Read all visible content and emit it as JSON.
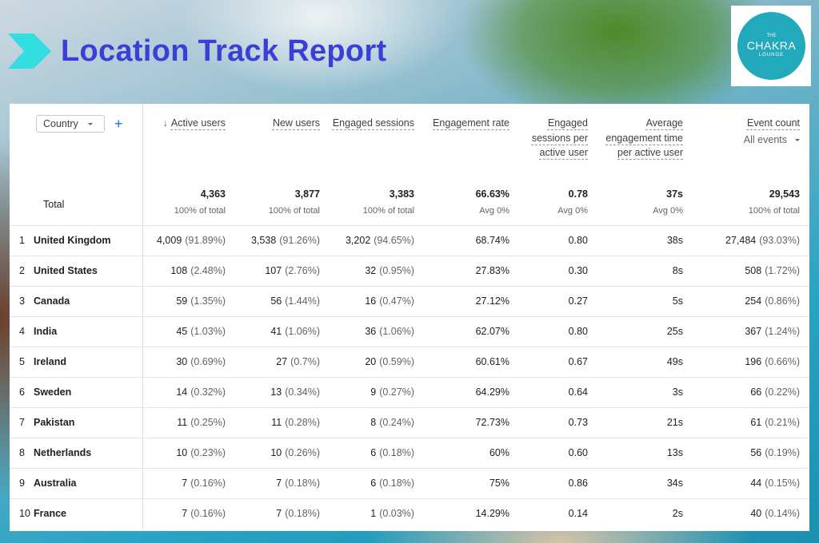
{
  "header": {
    "title": "Location Track Report"
  },
  "logo": {
    "top": "THE",
    "name": "CHAKRA",
    "bottom": "LOUNGE"
  },
  "table": {
    "dimension": "Country",
    "columns": [
      {
        "label": "Active users",
        "sorted": true
      },
      {
        "label": "New users"
      },
      {
        "label": "Engaged sessions"
      },
      {
        "label": "Engagement rate"
      },
      {
        "label": "Engaged sessions per active user"
      },
      {
        "label": "Average engagement time per active user"
      },
      {
        "label": "Event count",
        "sub": "All events"
      }
    ],
    "totals": {
      "label": "Total",
      "values": [
        {
          "value": "4,363",
          "note": "100% of total"
        },
        {
          "value": "3,877",
          "note": "100% of total"
        },
        {
          "value": "3,383",
          "note": "100% of total"
        },
        {
          "value": "66.63%",
          "note": "Avg 0%"
        },
        {
          "value": "0.78",
          "note": "Avg 0%"
        },
        {
          "value": "37s",
          "note": "Avg 0%"
        },
        {
          "value": "29,543",
          "note": "100% of total"
        }
      ]
    },
    "rows": [
      {
        "rank": "1",
        "country": "United Kingdom",
        "cells": [
          [
            "4,009",
            "(91.89%)"
          ],
          [
            "3,538",
            "(91.26%)"
          ],
          [
            "3,202",
            "(94.65%)"
          ],
          [
            "68.74%"
          ],
          [
            "0.80"
          ],
          [
            "38s"
          ],
          [
            "27,484",
            "(93.03%)"
          ]
        ]
      },
      {
        "rank": "2",
        "country": "United States",
        "cells": [
          [
            "108",
            "(2.48%)"
          ],
          [
            "107",
            "(2.76%)"
          ],
          [
            "32",
            "(0.95%)"
          ],
          [
            "27.83%"
          ],
          [
            "0.30"
          ],
          [
            "8s"
          ],
          [
            "508",
            "(1.72%)"
          ]
        ]
      },
      {
        "rank": "3",
        "country": "Canada",
        "cells": [
          [
            "59",
            "(1.35%)"
          ],
          [
            "56",
            "(1.44%)"
          ],
          [
            "16",
            "(0.47%)"
          ],
          [
            "27.12%"
          ],
          [
            "0.27"
          ],
          [
            "5s"
          ],
          [
            "254",
            "(0.86%)"
          ]
        ]
      },
      {
        "rank": "4",
        "country": "India",
        "cells": [
          [
            "45",
            "(1.03%)"
          ],
          [
            "41",
            "(1.06%)"
          ],
          [
            "36",
            "(1.06%)"
          ],
          [
            "62.07%"
          ],
          [
            "0.80"
          ],
          [
            "25s"
          ],
          [
            "367",
            "(1.24%)"
          ]
        ]
      },
      {
        "rank": "5",
        "country": "Ireland",
        "cells": [
          [
            "30",
            "(0.69%)"
          ],
          [
            "27",
            "(0.7%)"
          ],
          [
            "20",
            "(0.59%)"
          ],
          [
            "60.61%"
          ],
          [
            "0.67"
          ],
          [
            "49s"
          ],
          [
            "196",
            "(0.66%)"
          ]
        ]
      },
      {
        "rank": "6",
        "country": "Sweden",
        "cells": [
          [
            "14",
            "(0.32%)"
          ],
          [
            "13",
            "(0.34%)"
          ],
          [
            "9",
            "(0.27%)"
          ],
          [
            "64.29%"
          ],
          [
            "0.64"
          ],
          [
            "3s"
          ],
          [
            "66",
            "(0.22%)"
          ]
        ]
      },
      {
        "rank": "7",
        "country": "Pakistan",
        "cells": [
          [
            "11",
            "(0.25%)"
          ],
          [
            "11",
            "(0.28%)"
          ],
          [
            "8",
            "(0.24%)"
          ],
          [
            "72.73%"
          ],
          [
            "0.73"
          ],
          [
            "21s"
          ],
          [
            "61",
            "(0.21%)"
          ]
        ]
      },
      {
        "rank": "8",
        "country": "Netherlands",
        "cells": [
          [
            "10",
            "(0.23%)"
          ],
          [
            "10",
            "(0.26%)"
          ],
          [
            "6",
            "(0.18%)"
          ],
          [
            "60%"
          ],
          [
            "0.60"
          ],
          [
            "13s"
          ],
          [
            "56",
            "(0.19%)"
          ]
        ]
      },
      {
        "rank": "9",
        "country": "Australia",
        "cells": [
          [
            "7",
            "(0.16%)"
          ],
          [
            "7",
            "(0.18%)"
          ],
          [
            "6",
            "(0.18%)"
          ],
          [
            "75%"
          ],
          [
            "0.86"
          ],
          [
            "34s"
          ],
          [
            "44",
            "(0.15%)"
          ]
        ]
      },
      {
        "rank": "10",
        "country": "France",
        "cells": [
          [
            "7",
            "(0.16%)"
          ],
          [
            "7",
            "(0.18%)"
          ],
          [
            "1",
            "(0.03%)"
          ],
          [
            "14.29%"
          ],
          [
            "0.14"
          ],
          [
            "2s"
          ],
          [
            "40",
            "(0.14%)"
          ]
        ]
      }
    ]
  }
}
